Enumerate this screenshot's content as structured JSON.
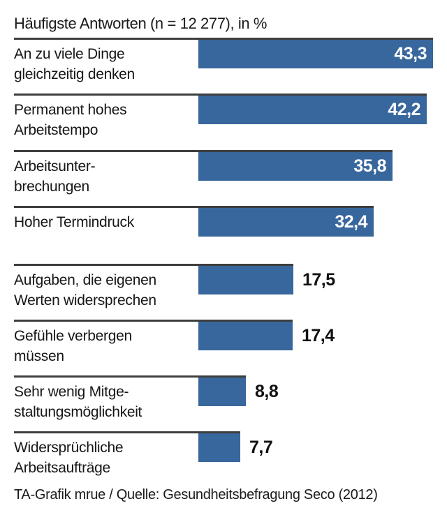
{
  "title": "Häufigste Antworten (n = 12 277), in %",
  "footer": "TA-Grafik mrue / Quelle: Gesundheitsbefragung Seco (2012)",
  "colors": {
    "bar": "#38679D",
    "rule": "#3e3e3e",
    "value_inside_text": "#ffffff",
    "value_outside_text": "#111111"
  },
  "chart_data": {
    "type": "bar",
    "orientation": "horizontal",
    "title": "Häufigste Antworten (n = 12 277), in %",
    "unit": "%",
    "xlim": [
      0,
      45
    ],
    "grid": false,
    "legend": false,
    "group_break_after_index": 3,
    "source": "TA-Grafik mrue / Quelle: Gesundheitsbefragung Seco (2012)",
    "categories": [
      "An zu viele Dinge gleichzeitig denken",
      "Permanent hohes Arbeitstempo",
      "Arbeitsunterbrechungen",
      "Hoher Termindruck",
      "Aufgaben, die eigenen Werten widersprechen",
      "Gefühle verbergen müssen",
      "Sehr wenig Mitgestaltungsmöglichkeit",
      "Widersprüchliche Arbeitsaufträge"
    ],
    "values": [
      43.3,
      42.2,
      35.8,
      32.4,
      17.5,
      17.4,
      8.8,
      7.7
    ],
    "rows": [
      {
        "label_lines": [
          "An zu viele Dinge",
          "gleichzeitig denken"
        ],
        "value": 43.3,
        "value_label": "43,3",
        "value_inside": true
      },
      {
        "label_lines": [
          "Permanent hohes",
          "Arbeitstempo"
        ],
        "value": 42.2,
        "value_label": "42,2",
        "value_inside": true
      },
      {
        "label_lines": [
          "Arbeitsunter-",
          "brechungen"
        ],
        "value": 35.8,
        "value_label": "35,8",
        "value_inside": true
      },
      {
        "label_lines": [
          "Hoher Termindruck"
        ],
        "value": 32.4,
        "value_label": "32,4",
        "value_inside": true
      },
      {
        "label_lines": [
          "Aufgaben, die eigenen",
          "Werten widersprechen"
        ],
        "value": 17.5,
        "value_label": "17,5",
        "value_inside": false
      },
      {
        "label_lines": [
          "Gefühle verbergen",
          "müssen"
        ],
        "value": 17.4,
        "value_label": "17,4",
        "value_inside": false
      },
      {
        "label_lines": [
          "Sehr wenig Mitge-",
          "staltungsmöglichkeit"
        ],
        "value": 8.8,
        "value_label": "8,8",
        "value_inside": false
      },
      {
        "label_lines": [
          "Widersprüchliche",
          "Arbeitsaufträge"
        ],
        "value": 7.7,
        "value_label": "7,7",
        "value_inside": false
      }
    ]
  }
}
